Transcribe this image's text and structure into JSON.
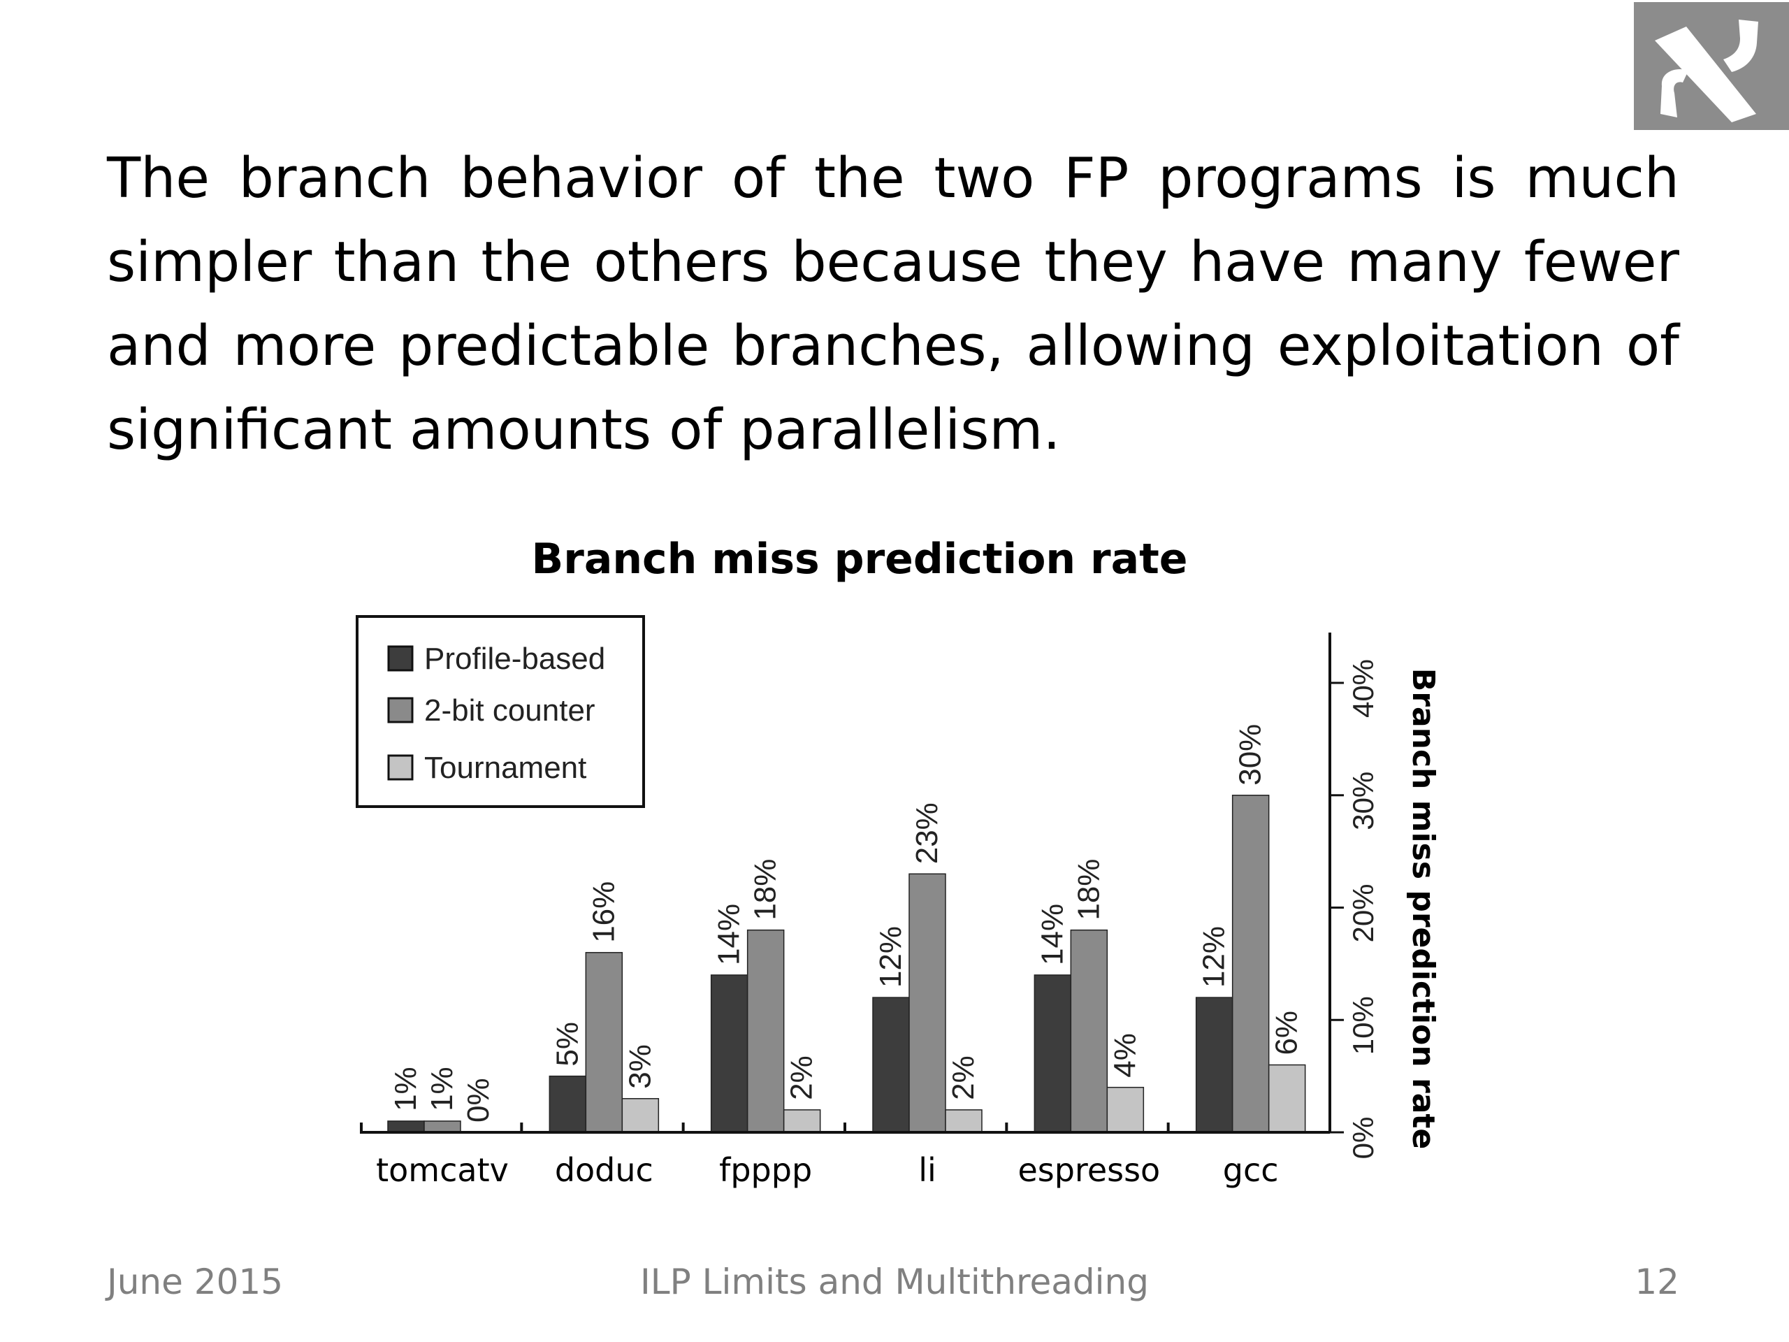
{
  "slide": {
    "text": "The branch behavior of the two FP programs is much simpler than the others because they have many fewer and more predictable branches, allowing exploitation of significant amounts of parallelism.",
    "chart_title": "Branch miss prediction rate",
    "footer_left": "June 2015",
    "footer_center": "ILP Limits and Multithreading",
    "footer_right": "12"
  },
  "colors": {
    "Profile-based": "#3d3d3d",
    "2-bit counter": "#8a8a8a",
    "Tournament": "#c4c4c4",
    "logo_bg": "#8c8c8c"
  },
  "chart_data": {
    "type": "bar",
    "title": "Branch miss prediction rate",
    "categories": [
      "tomcatv",
      "doduc",
      "fpppp",
      "li",
      "espresso",
      "gcc"
    ],
    "series": [
      {
        "name": "Profile-based",
        "values": [
          1,
          5,
          14,
          12,
          14,
          12
        ],
        "labels": [
          "1%",
          "5%",
          "14%",
          "12%",
          "14%",
          "12%"
        ]
      },
      {
        "name": "2-bit counter",
        "values": [
          1,
          16,
          18,
          23,
          18,
          30
        ],
        "labels": [
          "1%",
          "16%",
          "18%",
          "23%",
          "18%",
          "30%"
        ]
      },
      {
        "name": "Tournament",
        "values": [
          0,
          3,
          2,
          2,
          4,
          6
        ],
        "labels": [
          "0%",
          "3%",
          "2%",
          "2%",
          "4%",
          "6%"
        ]
      }
    ],
    "ylabel": "Branch miss prediction rate",
    "ylim": [
      0,
      40
    ],
    "yticks": [
      0,
      10,
      20,
      30,
      40
    ],
    "ytick_labels": [
      "0%",
      "10%",
      "20%",
      "30%",
      "40%"
    ],
    "y_axis_side": "right",
    "legend": [
      "Profile-based",
      "2-bit counter",
      "Tournament"
    ],
    "legend_position": "top-left",
    "grid": false
  }
}
